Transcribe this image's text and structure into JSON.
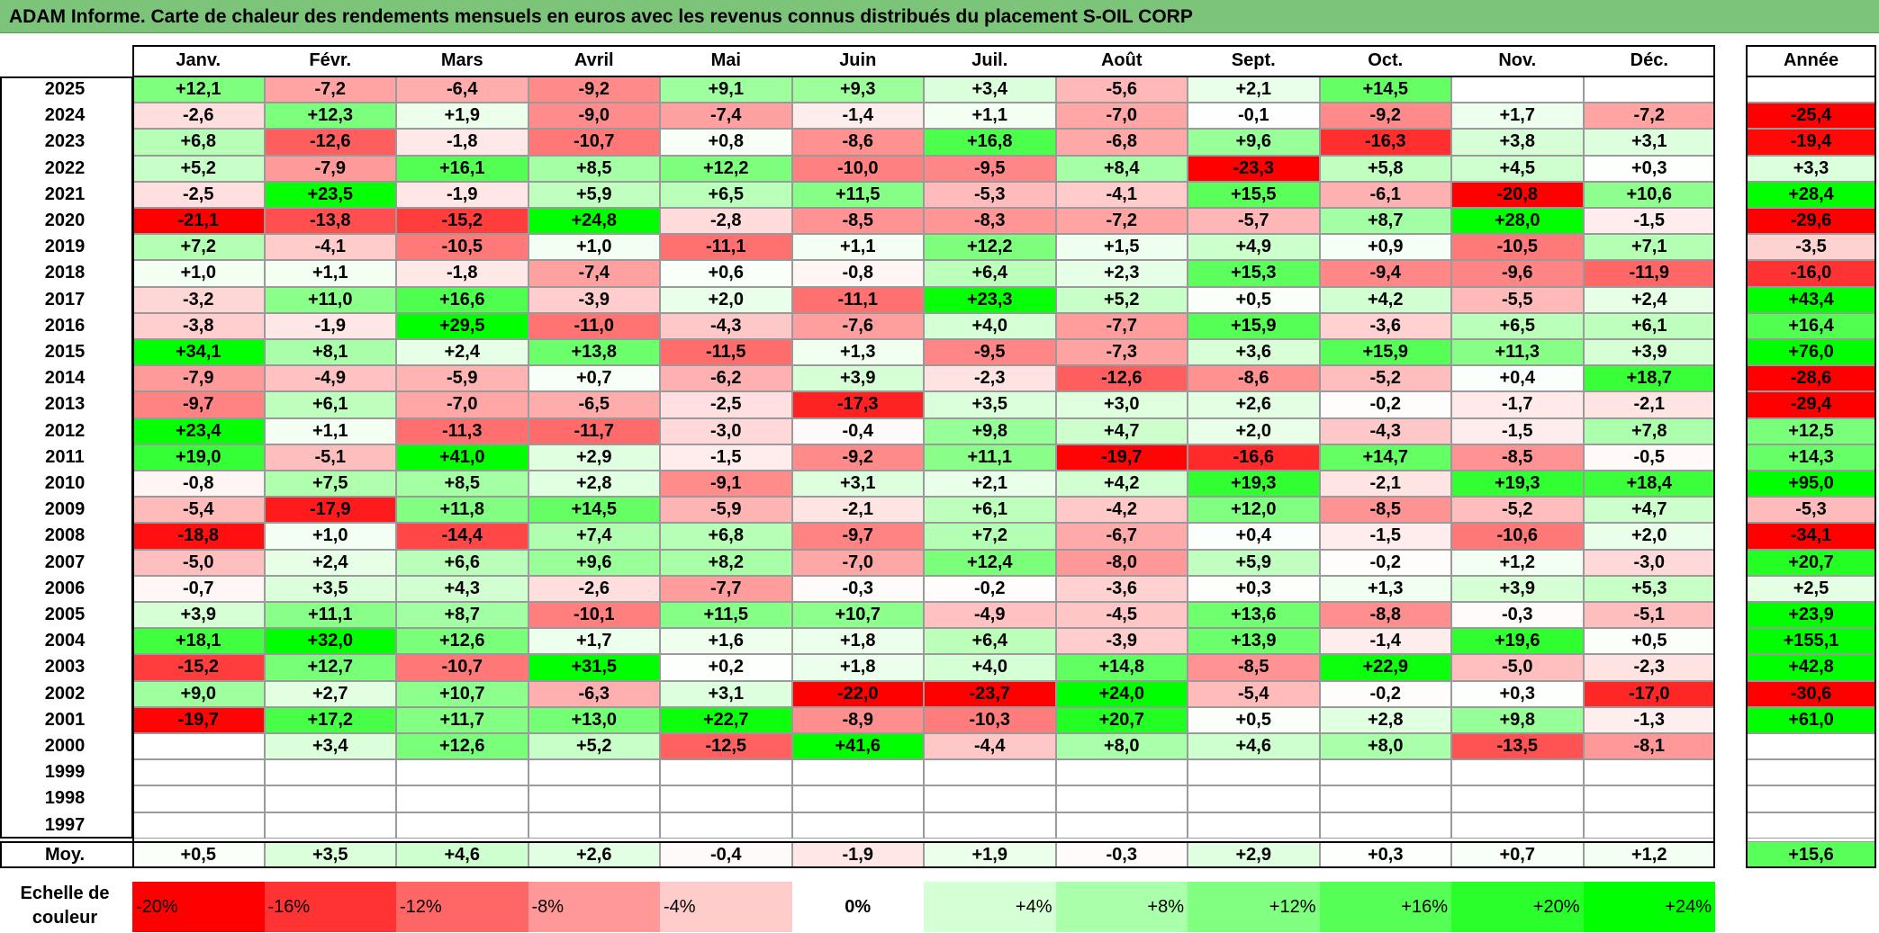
{
  "chart_data": {
    "type": "heatmap",
    "title": "ADAM Informe. Carte de chaleur des rendements mensuels en euros avec les revenus connus distribués du placement S-OIL CORP",
    "months": [
      "Janv.",
      "Févr.",
      "Mars",
      "Avril",
      "Mai",
      "Juin",
      "Juil.",
      "Août",
      "Sept.",
      "Oct.",
      "Nov.",
      "Déc."
    ],
    "year_header": "Année",
    "rows": [
      {
        "year": "2025",
        "values": [
          "+12,1",
          "-7,2",
          "-6,4",
          "-9,2",
          "+9,1",
          "+9,3",
          "+3,4",
          "-5,6",
          "+2,1",
          "+14,5",
          "",
          ""
        ],
        "annual": ""
      },
      {
        "year": "2024",
        "values": [
          "-2,6",
          "+12,3",
          "+1,9",
          "-9,0",
          "-7,4",
          "-1,4",
          "+1,1",
          "-7,0",
          "-0,1",
          "-9,2",
          "+1,7",
          "-7,2"
        ],
        "annual": "-25,4"
      },
      {
        "year": "2023",
        "values": [
          "+6,8",
          "-12,6",
          "-1,8",
          "-10,7",
          "+0,8",
          "-8,6",
          "+16,8",
          "-6,8",
          "+9,6",
          "-16,3",
          "+3,8",
          "+3,1"
        ],
        "annual": "-19,4"
      },
      {
        "year": "2022",
        "values": [
          "+5,2",
          "-7,9",
          "+16,1",
          "+8,5",
          "+12,2",
          "-10,0",
          "-9,5",
          "+8,4",
          "-23,3",
          "+5,8",
          "+4,5",
          "+0,3"
        ],
        "annual": "+3,3"
      },
      {
        "year": "2021",
        "values": [
          "-2,5",
          "+23,5",
          "-1,9",
          "+5,9",
          "+6,5",
          "+11,5",
          "-5,3",
          "-4,1",
          "+15,5",
          "-6,1",
          "-20,8",
          "+10,6"
        ],
        "annual": "+28,4"
      },
      {
        "year": "2020",
        "values": [
          "-21,1",
          "-13,8",
          "-15,2",
          "+24,8",
          "-2,8",
          "-8,5",
          "-8,3",
          "-7,2",
          "-5,7",
          "+8,7",
          "+28,0",
          "-1,5"
        ],
        "annual": "-29,6"
      },
      {
        "year": "2019",
        "values": [
          "+7,2",
          "-4,1",
          "-10,5",
          "+1,0",
          "-11,1",
          "+1,1",
          "+12,2",
          "+1,5",
          "+4,9",
          "+0,9",
          "-10,5",
          "+7,1"
        ],
        "annual": "-3,5"
      },
      {
        "year": "2018",
        "values": [
          "+1,0",
          "+1,1",
          "-1,8",
          "-7,4",
          "+0,6",
          "-0,8",
          "+6,4",
          "+2,3",
          "+15,3",
          "-9,4",
          "-9,6",
          "-11,9"
        ],
        "annual": "-16,0"
      },
      {
        "year": "2017",
        "values": [
          "-3,2",
          "+11,0",
          "+16,6",
          "-3,9",
          "+2,0",
          "-11,1",
          "+23,3",
          "+5,2",
          "+0,5",
          "+4,2",
          "-5,5",
          "+2,4"
        ],
        "annual": "+43,4"
      },
      {
        "year": "2016",
        "values": [
          "-3,8",
          "-1,9",
          "+29,5",
          "-11,0",
          "-4,3",
          "-7,6",
          "+4,0",
          "-7,7",
          "+15,9",
          "-3,6",
          "+6,5",
          "+6,1"
        ],
        "annual": "+16,4"
      },
      {
        "year": "2015",
        "values": [
          "+34,1",
          "+8,1",
          "+2,4",
          "+13,8",
          "-11,5",
          "+1,3",
          "-9,5",
          "-7,3",
          "+3,6",
          "+15,9",
          "+11,3",
          "+3,9"
        ],
        "annual": "+76,0"
      },
      {
        "year": "2014",
        "values": [
          "-7,9",
          "-4,9",
          "-5,9",
          "+0,7",
          "-6,2",
          "+3,9",
          "-2,3",
          "-12,6",
          "-8,6",
          "-5,2",
          "+0,4",
          "+18,7"
        ],
        "annual": "-28,6"
      },
      {
        "year": "2013",
        "values": [
          "-9,7",
          "+6,1",
          "-7,0",
          "-6,5",
          "-2,5",
          "-17,3",
          "+3,5",
          "+3,0",
          "+2,6",
          "-0,2",
          "-1,7",
          "-2,1"
        ],
        "annual": "-29,4"
      },
      {
        "year": "2012",
        "values": [
          "+23,4",
          "+1,1",
          "-11,3",
          "-11,7",
          "-3,0",
          "-0,4",
          "+9,8",
          "+4,7",
          "+2,0",
          "-4,3",
          "-1,5",
          "+7,8"
        ],
        "annual": "+12,5"
      },
      {
        "year": "2011",
        "values": [
          "+19,0",
          "-5,1",
          "+41,0",
          "+2,9",
          "-1,5",
          "-9,2",
          "+11,1",
          "-19,7",
          "-16,6",
          "+14,7",
          "-8,5",
          "-0,5"
        ],
        "annual": "+14,3"
      },
      {
        "year": "2010",
        "values": [
          "-0,8",
          "+7,5",
          "+8,5",
          "+2,8",
          "-9,1",
          "+3,1",
          "+2,1",
          "+4,2",
          "+19,3",
          "-2,1",
          "+19,3",
          "+18,4"
        ],
        "annual": "+95,0"
      },
      {
        "year": "2009",
        "values": [
          "-5,4",
          "-17,9",
          "+11,8",
          "+14,5",
          "-5,9",
          "-2,1",
          "+6,1",
          "-4,2",
          "+12,0",
          "-8,5",
          "-5,2",
          "+4,7"
        ],
        "annual": "-5,3"
      },
      {
        "year": "2008",
        "values": [
          "-18,8",
          "+1,0",
          "-14,4",
          "+7,4",
          "+6,8",
          "-9,7",
          "+7,2",
          "-6,7",
          "+0,4",
          "-1,5",
          "-10,6",
          "+2,0"
        ],
        "annual": "-34,1"
      },
      {
        "year": "2007",
        "values": [
          "-5,0",
          "+2,4",
          "+6,6",
          "+9,6",
          "+8,2",
          "-7,0",
          "+12,4",
          "-8,0",
          "+5,9",
          "-0,2",
          "+1,2",
          "-3,0"
        ],
        "annual": "+20,7"
      },
      {
        "year": "2006",
        "values": [
          "-0,7",
          "+3,5",
          "+4,3",
          "-2,6",
          "-7,7",
          "-0,3",
          "-0,2",
          "-3,6",
          "+0,3",
          "+1,3",
          "+3,9",
          "+5,3"
        ],
        "annual": "+2,5"
      },
      {
        "year": "2005",
        "values": [
          "+3,9",
          "+11,1",
          "+8,7",
          "-10,1",
          "+11,5",
          "+10,7",
          "-4,9",
          "-4,5",
          "+13,6",
          "-8,8",
          "-0,3",
          "-5,1"
        ],
        "annual": "+23,9"
      },
      {
        "year": "2004",
        "values": [
          "+18,1",
          "+32,0",
          "+12,6",
          "+1,7",
          "+1,6",
          "+1,8",
          "+6,4",
          "-3,9",
          "+13,9",
          "-1,4",
          "+19,6",
          "+0,5"
        ],
        "annual": "+155,1"
      },
      {
        "year": "2003",
        "values": [
          "-15,2",
          "+12,7",
          "-10,7",
          "+31,5",
          "+0,2",
          "+1,8",
          "+4,0",
          "+14,8",
          "-8,5",
          "+22,9",
          "-5,0",
          "-2,3"
        ],
        "annual": "+42,8"
      },
      {
        "year": "2002",
        "values": [
          "+9,0",
          "+2,7",
          "+10,7",
          "-6,3",
          "+3,1",
          "-22,0",
          "-23,7",
          "+24,0",
          "-5,4",
          "-0,2",
          "+0,3",
          "-17,0"
        ],
        "annual": "-30,6"
      },
      {
        "year": "2001",
        "values": [
          "-19,7",
          "+17,2",
          "+11,7",
          "+13,0",
          "+22,7",
          "-8,9",
          "-10,3",
          "+20,7",
          "+0,5",
          "+2,8",
          "+9,8",
          "-1,3"
        ],
        "annual": "+61,0"
      },
      {
        "year": "2000",
        "values": [
          "",
          "+3,4",
          "+12,6",
          "+5,2",
          "-12,5",
          "+41,6",
          "-4,4",
          "+8,0",
          "+4,6",
          "+8,0",
          "-13,5",
          "-8,1"
        ],
        "annual": ""
      },
      {
        "year": "1999",
        "values": [
          "",
          "",
          "",
          "",
          "",
          "",
          "",
          "",
          "",
          "",
          "",
          ""
        ],
        "annual": ""
      },
      {
        "year": "1998",
        "values": [
          "",
          "",
          "",
          "",
          "",
          "",
          "",
          "",
          "",
          "",
          "",
          ""
        ],
        "annual": ""
      },
      {
        "year": "1997",
        "values": [
          "",
          "",
          "",
          "",
          "",
          "",
          "",
          "",
          "",
          "",
          "",
          ""
        ],
        "annual": ""
      }
    ],
    "average": {
      "label": "Moy.",
      "values": [
        "+0,5",
        "+3,5",
        "+4,6",
        "+2,6",
        "-0,4",
        "-1,9",
        "+1,9",
        "-0,3",
        "+2,9",
        "+0,3",
        "+0,7",
        "+1,2"
      ],
      "annual": "+15,6"
    },
    "legend": {
      "label": "Echelle de couleur",
      "steps": [
        {
          "label": "-20%",
          "value": -20
        },
        {
          "label": "-16%",
          "value": -16
        },
        {
          "label": "-12%",
          "value": -12
        },
        {
          "label": "-8%",
          "value": -8
        },
        {
          "label": "-4%",
          "value": -4
        },
        {
          "label": "0%",
          "value": 0
        },
        {
          "label": "+4%",
          "value": 4
        },
        {
          "label": "+8%",
          "value": 8
        },
        {
          "label": "+12%",
          "value": 12
        },
        {
          "label": "+16%",
          "value": 16
        },
        {
          "label": "+20%",
          "value": 20
        },
        {
          "label": "+24%",
          "value": 24
        }
      ]
    },
    "color_scale": {
      "negative": "#ff0000",
      "neutral": "#ffffff",
      "positive": "#00ff00",
      "saturation_negative": 20,
      "saturation_positive": 24
    },
    "colors": {
      "title_background": "#7dc47b",
      "grid_border": "#000000"
    }
  }
}
